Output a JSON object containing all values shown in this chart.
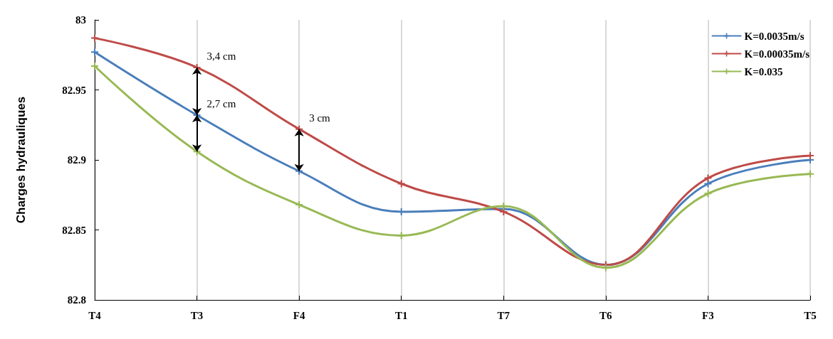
{
  "chart_data": {
    "type": "line",
    "ylabel": "Charges hydrauliques",
    "categories": [
      "T4",
      "T3",
      "F4",
      "T1",
      "T7",
      "T6",
      "F3",
      "T5"
    ],
    "series": [
      {
        "name": "K=0.0035m/s",
        "color": "#4a7ebb",
        "values": [
          82.977,
          82.932,
          82.892,
          82.863,
          82.865,
          82.825,
          82.883,
          82.9
        ]
      },
      {
        "name": "K=0.00035m/s",
        "color": "#be4b48",
        "values": [
          82.987,
          82.966,
          82.922,
          82.883,
          82.863,
          82.825,
          82.887,
          82.903
        ]
      },
      {
        "name": "K=0.035",
        "color": "#98b954",
        "values": [
          82.967,
          82.906,
          82.868,
          82.846,
          82.867,
          82.823,
          82.876,
          82.89
        ]
      }
    ],
    "ylim": [
      82.8,
      83
    ],
    "yticks": [
      82.8,
      82.85,
      82.9,
      82.95,
      83
    ],
    "annotations": [
      {
        "text": "3,4 cm",
        "x": "T3",
        "y": 82.966
      },
      {
        "text": "2,7 cm",
        "x": "T3",
        "y": 82.932
      },
      {
        "text": "3 cm",
        "x": "F4",
        "y": 82.922
      }
    ],
    "grid": "x",
    "legend": "top right",
    "marker": "cross",
    "line_style": "solid"
  }
}
